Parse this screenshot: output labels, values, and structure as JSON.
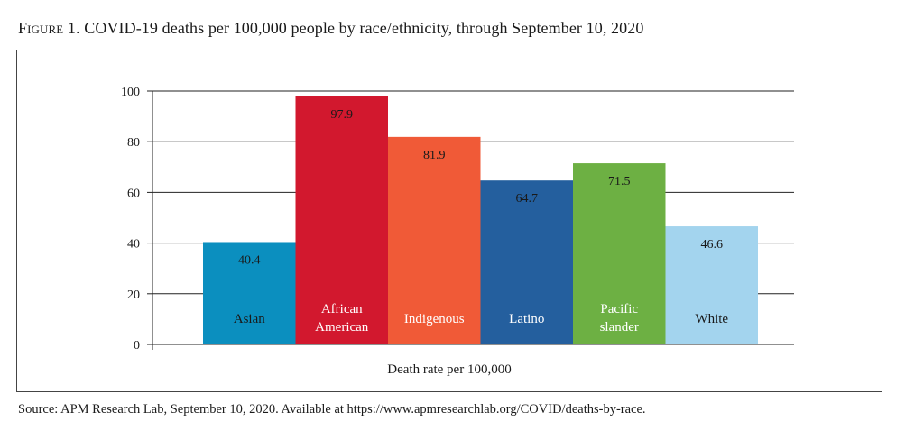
{
  "figure": {
    "title_prefix": "Figure 1.",
    "title_text": " COVID-19 deaths per 100,000 people by race/ethnicity, through September 10, 2020"
  },
  "source_note": "Source: APM Research Lab, September 10, 2020. Available at https://www.apmresearchlab.org/COVID/deaths-by-race.",
  "chart_data": {
    "type": "bar",
    "categories": [
      "Asian",
      "African American",
      "Indigenous",
      "Latino",
      "Pacific slander",
      "White"
    ],
    "category_lines": [
      [
        "Asian"
      ],
      [
        "African",
        "American"
      ],
      [
        "Indigenous"
      ],
      [
        "Latino"
      ],
      [
        "Pacific",
        "slander"
      ],
      [
        "White"
      ]
    ],
    "values": [
      40.4,
      97.9,
      81.9,
      64.7,
      71.5,
      46.6
    ],
    "value_labels": [
      "40.4",
      "97.9",
      "81.9",
      "64.7",
      "71.5",
      "46.6"
    ],
    "colors": [
      "#0b8fbf",
      "#d2182e",
      "#f05a37",
      "#245f9e",
      "#6db043",
      "#a3d4ee"
    ],
    "xlabel": "Death rate per 100,000",
    "ylabel": "",
    "ylim": [
      0,
      100
    ],
    "yticks": [
      0,
      20,
      40,
      60,
      80,
      100
    ],
    "grid": true,
    "legend": "none"
  }
}
